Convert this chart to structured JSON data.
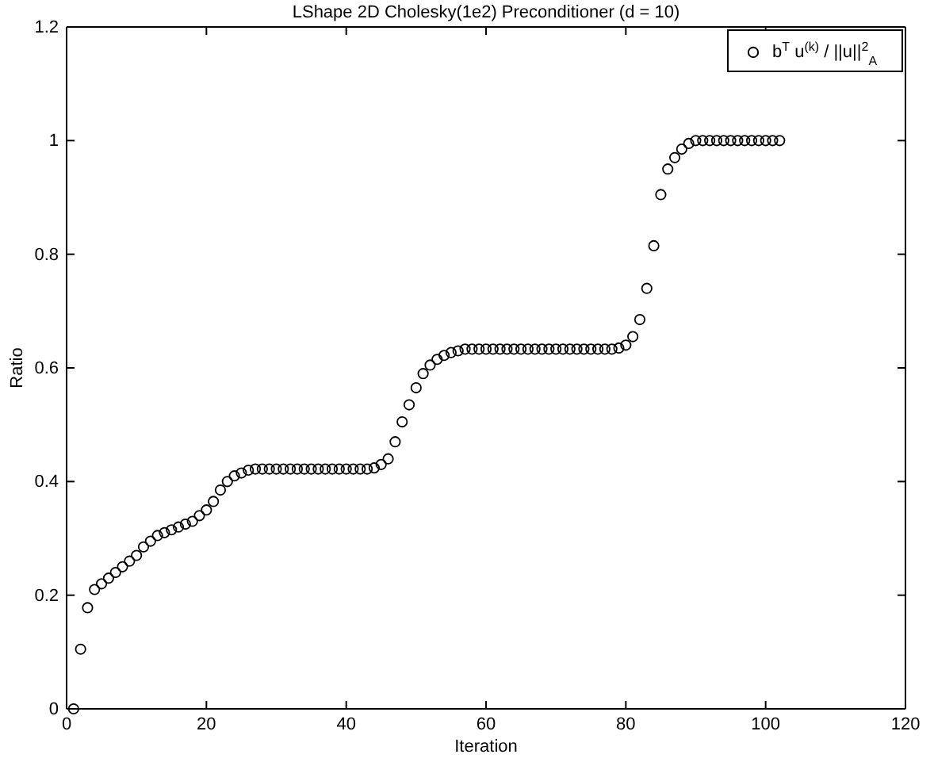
{
  "chart_data": {
    "type": "scatter",
    "title": "LShape  2D  Cholesky(1e2) Preconditioner (d = 10)",
    "xlabel": "Iteration",
    "ylabel": "Ratio",
    "xlim": [
      0,
      120
    ],
    "xticks": [
      0,
      20,
      40,
      60,
      80,
      100,
      120
    ],
    "ylim": [
      0,
      1.2
    ],
    "yticks": [
      0,
      0.2,
      0.4,
      0.6,
      0.8,
      1,
      1.2
    ],
    "marker": "circle",
    "legend": "top right",
    "grid": false,
    "series": [
      {
        "name": "b$^{T}$ u$^{(k)}$ / ||u||$^{2}$$_{A}$",
        "color": "#000000",
        "x": [
          1,
          2,
          3,
          4,
          5,
          6,
          7,
          8,
          9,
          10,
          11,
          12,
          13,
          14,
          15,
          16,
          17,
          18,
          19,
          20,
          21,
          22,
          23,
          24,
          25,
          26,
          27,
          28,
          29,
          30,
          31,
          32,
          33,
          34,
          35,
          36,
          37,
          38,
          39,
          40,
          41,
          42,
          43,
          44,
          45,
          46,
          47,
          48,
          49,
          50,
          51,
          52,
          53,
          54,
          55,
          56,
          57,
          58,
          59,
          60,
          61,
          62,
          63,
          64,
          65,
          66,
          67,
          68,
          69,
          70,
          71,
          72,
          73,
          74,
          75,
          76,
          77,
          78,
          79,
          80,
          81,
          82,
          83,
          84,
          85,
          86,
          87,
          88,
          89,
          90,
          91,
          92,
          93,
          94,
          95,
          96,
          97,
          98,
          99,
          100,
          101,
          102
        ],
        "values": [
          0,
          0.105,
          0.178,
          0.21,
          0.22,
          0.23,
          0.24,
          0.25,
          0.26,
          0.27,
          0.285,
          0.295,
          0.305,
          0.31,
          0.315,
          0.32,
          0.325,
          0.33,
          0.34,
          0.35,
          0.365,
          0.385,
          0.4,
          0.41,
          0.415,
          0.42,
          0.422,
          0.422,
          0.422,
          0.422,
          0.422,
          0.422,
          0.422,
          0.422,
          0.422,
          0.422,
          0.422,
          0.422,
          0.422,
          0.422,
          0.422,
          0.422,
          0.422,
          0.424,
          0.43,
          0.44,
          0.47,
          0.505,
          0.535,
          0.565,
          0.59,
          0.605,
          0.615,
          0.622,
          0.627,
          0.63,
          0.633,
          0.633,
          0.633,
          0.633,
          0.633,
          0.633,
          0.633,
          0.633,
          0.633,
          0.633,
          0.633,
          0.633,
          0.633,
          0.633,
          0.633,
          0.633,
          0.633,
          0.633,
          0.633,
          0.633,
          0.633,
          0.633,
          0.635,
          0.64,
          0.655,
          0.685,
          0.74,
          0.815,
          0.905,
          0.95,
          0.97,
          0.985,
          0.995,
          1,
          1,
          1,
          1,
          1,
          1,
          1,
          1,
          1,
          1,
          1,
          1,
          1
        ]
      }
    ]
  }
}
